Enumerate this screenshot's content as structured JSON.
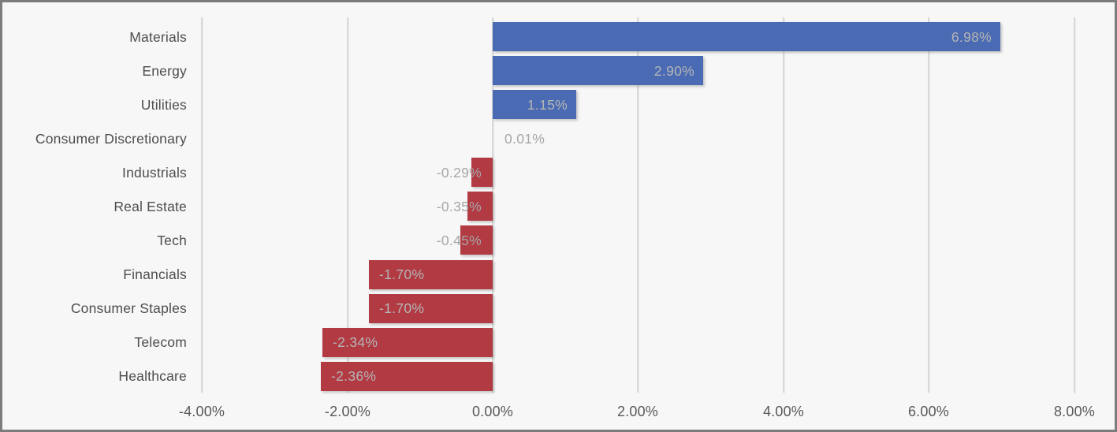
{
  "chart_data": {
    "type": "bar",
    "orientation": "horizontal",
    "title": "",
    "xlabel": "",
    "ylabel": "",
    "categories": [
      "Materials",
      "Energy",
      "Utilities",
      "Consumer Discretionary",
      "Industrials",
      "Real Estate",
      "Tech",
      "Financials",
      "Consumer Staples",
      "Telecom",
      "Healthcare"
    ],
    "values": [
      6.98,
      2.9,
      1.15,
      0.01,
      -0.29,
      -0.35,
      -0.45,
      -1.7,
      -1.7,
      -2.34,
      -2.36
    ],
    "value_labels": [
      "6.98%",
      "2.90%",
      "1.15%",
      "0.01%",
      "-0.29%",
      "-0.35%",
      "-0.45%",
      "-1.70%",
      "-1.70%",
      "-2.34%",
      "-2.36%"
    ],
    "x_ticks": [
      {
        "value": -4,
        "label": "-4.00%"
      },
      {
        "value": -2,
        "label": "-2.00%"
      },
      {
        "value": 0,
        "label": "0.00%"
      },
      {
        "value": 2,
        "label": "2.00%"
      },
      {
        "value": 4,
        "label": "4.00%"
      },
      {
        "value": 6,
        "label": "6.00%"
      },
      {
        "value": 8,
        "label": "8.00%"
      }
    ],
    "xlim": [
      -4.1,
      8.6
    ],
    "grid": "vertical-only",
    "legend": "none",
    "colors": {
      "positive_bar": "#4a6bb3",
      "negative_bar": "#b23a43",
      "inside_value_label": "#b5b5b5",
      "outside_value_label": "#a6a6a6",
      "category_label": "#4d4d4d",
      "axis_label": "#595959",
      "gridline": "#d9d9d9",
      "background": "#f7f7f7",
      "frame_border": "#7c7c7c"
    }
  }
}
